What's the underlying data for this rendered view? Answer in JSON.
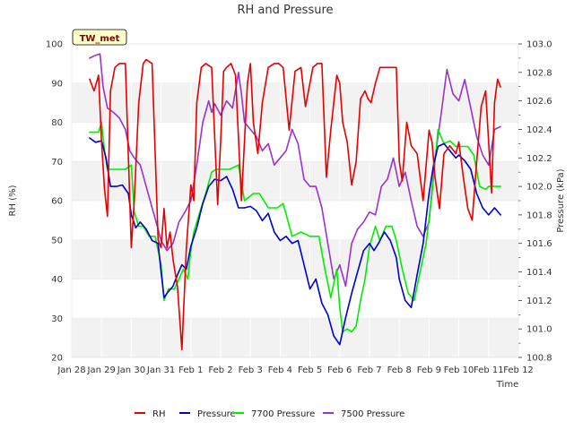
{
  "chart_data": {
    "type": "line",
    "title": "RH and Pressure",
    "station_label": "TW_met",
    "xlabel": "Time",
    "ylabel_left": "RH (%)",
    "ylabel_right": "Pressure (kPa)",
    "x_ticks": [
      "Jan 28",
      "Jan 29",
      "Jan 30",
      "Jan 31",
      "Feb 1",
      "Feb 2",
      "Feb 3",
      "Feb 4",
      "Feb 5",
      "Feb 6",
      "Feb 7",
      "Feb 8",
      "Feb 9",
      "Feb 10",
      "Feb 11",
      "Feb 12"
    ],
    "xlim_days": [
      0,
      15
    ],
    "ylim_left": [
      20,
      100
    ],
    "left_ticks": [
      20,
      30,
      40,
      50,
      60,
      70,
      80,
      90,
      100
    ],
    "ylim_right": [
      100.8,
      103.0
    ],
    "right_ticks": [
      "100.8",
      "101.0",
      "101.2",
      "101.4",
      "101.6",
      "101.8",
      "102.0",
      "102.2",
      "102.4",
      "102.6",
      "102.8",
      "103.0"
    ],
    "colors": {
      "RH": "#e60000",
      "Pressure": "#0000cc",
      "7700 Pressure": "#00ee00",
      "7500 Pressure": "#9a32cd",
      "band": "#f2f2f2",
      "grid": "#ffffff"
    },
    "legend": [
      "RH",
      "Pressure",
      "7700 Pressure",
      "7500 Pressure"
    ],
    "series": [
      {
        "name": "RH",
        "axis": "left",
        "x": [
          0.6,
          0.75,
          0.9,
          1.0,
          1.1,
          1.2,
          1.3,
          1.45,
          1.6,
          1.8,
          2.0,
          2.1,
          2.25,
          2.4,
          2.5,
          2.7,
          2.9,
          3.0,
          3.1,
          3.2,
          3.3,
          3.4,
          3.55,
          3.7,
          3.85,
          4.0,
          4.1,
          4.2,
          4.35,
          4.5,
          4.7,
          4.9,
          5.0,
          5.1,
          5.2,
          5.35,
          5.5,
          5.7,
          5.9,
          6.0,
          6.1,
          6.25,
          6.4,
          6.6,
          6.8,
          6.95,
          7.1,
          7.3,
          7.5,
          7.7,
          7.85,
          8.0,
          8.1,
          8.25,
          8.4,
          8.55,
          8.7,
          8.9,
          9.0,
          9.1,
          9.25,
          9.4,
          9.55,
          9.7,
          9.85,
          9.95,
          10.05,
          10.2,
          10.35,
          10.5,
          10.7,
          10.9,
          11.0,
          11.1,
          11.25,
          11.4,
          11.6,
          11.8,
          12.0,
          12.1,
          12.2,
          12.35,
          12.5,
          12.7,
          12.9,
          13.0,
          13.15,
          13.3,
          13.45,
          13.6,
          13.75,
          13.9,
          14.0,
          14.1,
          14.2,
          14.3,
          14.4
        ],
        "values": [
          91,
          88,
          92,
          75,
          63,
          56,
          88,
          94,
          95,
          95,
          48,
          60,
          85,
          95,
          96,
          95,
          50,
          48,
          58,
          48,
          52,
          45,
          38,
          22,
          48,
          64,
          60,
          85,
          94,
          95,
          94,
          59,
          75,
          93,
          94,
          95,
          92,
          60,
          90,
          95,
          80,
          72,
          85,
          94,
          95,
          95,
          94,
          78,
          93,
          94,
          84,
          90,
          94,
          95,
          95,
          66,
          78,
          92,
          90,
          80,
          75,
          64,
          70,
          86,
          88,
          86,
          85,
          90,
          94,
          94,
          94,
          94,
          70,
          65,
          80,
          74,
          72,
          60,
          78,
          75,
          66,
          58,
          72,
          74,
          72,
          75,
          66,
          58,
          55,
          70,
          84,
          88,
          75,
          62,
          85,
          91,
          89
        ]
      },
      {
        "name": "Pressure",
        "axis": "right",
        "x": [
          0.6,
          0.8,
          1.0,
          1.15,
          1.3,
          1.5,
          1.7,
          1.9,
          2.0,
          2.15,
          2.3,
          2.5,
          2.7,
          2.9,
          3.0,
          3.1,
          3.2,
          3.4,
          3.55,
          3.7,
          3.85,
          4.0,
          4.2,
          4.4,
          4.6,
          4.8,
          5.0,
          5.2,
          5.4,
          5.6,
          5.8,
          6.0,
          6.2,
          6.4,
          6.6,
          6.8,
          7.0,
          7.2,
          7.4,
          7.6,
          7.8,
          8.0,
          8.2,
          8.4,
          8.6,
          8.8,
          9.0,
          9.2,
          9.4,
          9.6,
          9.8,
          10.0,
          10.15,
          10.3,
          10.5,
          10.7,
          10.9,
          11.0,
          11.2,
          11.4,
          11.6,
          11.8,
          12.0,
          12.15,
          12.3,
          12.5,
          12.7,
          12.9,
          13.0,
          13.2,
          13.4,
          13.6,
          13.8,
          14.0,
          14.2,
          14.4
        ],
        "values": [
          102.34,
          102.31,
          102.32,
          102.2,
          102.0,
          102.0,
          102.01,
          101.95,
          101.8,
          101.71,
          101.75,
          101.7,
          101.62,
          101.6,
          101.4,
          101.22,
          101.25,
          101.3,
          101.38,
          101.45,
          101.42,
          101.58,
          101.71,
          101.88,
          102.0,
          102.05,
          102.04,
          102.07,
          101.98,
          101.85,
          101.85,
          101.86,
          101.83,
          101.76,
          101.81,
          101.68,
          101.62,
          101.65,
          101.6,
          101.62,
          101.45,
          101.28,
          101.35,
          101.18,
          101.1,
          100.95,
          100.89,
          101.08,
          101.25,
          101.4,
          101.55,
          101.6,
          101.55,
          101.6,
          101.68,
          101.62,
          101.5,
          101.35,
          101.2,
          101.15,
          101.38,
          101.6,
          101.95,
          102.15,
          102.28,
          102.3,
          102.25,
          102.2,
          102.22,
          102.18,
          102.12,
          101.95,
          101.85,
          101.8,
          101.85,
          101.8
        ]
      },
      {
        "name": "7700 Pressure",
        "axis": "right",
        "x": [
          0.6,
          0.9,
          1.0,
          1.1,
          1.2,
          1.5,
          1.8,
          2.0,
          2.1,
          2.25,
          2.4,
          2.6,
          2.8,
          3.0,
          3.1,
          3.25,
          3.45,
          3.6,
          3.75,
          3.9,
          4.0,
          4.1,
          4.3,
          4.5,
          4.7,
          4.85,
          5.0,
          5.3,
          5.6,
          5.8,
          6.1,
          6.3,
          6.6,
          6.9,
          7.1,
          7.4,
          7.7,
          8.0,
          8.3,
          8.5,
          8.7,
          8.9,
          9.0,
          9.1,
          9.25,
          9.4,
          9.55,
          9.7,
          9.85,
          10.0,
          10.2,
          10.35,
          10.55,
          10.75,
          10.9,
          11.1,
          11.3,
          11.5,
          11.7,
          11.9,
          12.1,
          12.3,
          12.5,
          12.7,
          12.9,
          13.1,
          13.3,
          13.5,
          13.7,
          13.9,
          14.0,
          14.2,
          14.4
        ],
        "values": [
          102.38,
          102.38,
          102.45,
          102.25,
          102.12,
          102.12,
          102.12,
          102.15,
          101.82,
          101.72,
          101.72,
          101.65,
          101.65,
          101.45,
          101.2,
          101.28,
          101.28,
          101.35,
          101.42,
          101.35,
          101.55,
          101.68,
          101.82,
          101.95,
          102.1,
          102.12,
          102.12,
          102.12,
          102.15,
          101.9,
          101.95,
          101.95,
          101.85,
          101.85,
          101.88,
          101.65,
          101.68,
          101.65,
          101.65,
          101.42,
          101.22,
          101.42,
          101.15,
          100.98,
          101.0,
          100.98,
          101.02,
          101.2,
          101.35,
          101.58,
          101.72,
          101.62,
          101.72,
          101.72,
          101.62,
          101.42,
          101.25,
          101.2,
          101.4,
          101.6,
          101.95,
          102.4,
          102.3,
          102.32,
          102.28,
          102.28,
          102.28,
          102.22,
          102.0,
          101.98,
          102.0,
          102.0,
          102.0
        ]
      },
      {
        "name": "7500 Pressure",
        "axis": "right",
        "x": [
          0.6,
          0.8,
          0.95,
          1.05,
          1.2,
          1.4,
          1.6,
          1.8,
          1.95,
          2.1,
          2.3,
          2.5,
          2.7,
          2.9,
          3.0,
          3.2,
          3.4,
          3.6,
          3.8,
          4.0,
          4.2,
          4.4,
          4.6,
          4.7,
          4.8,
          5.0,
          5.2,
          5.4,
          5.6,
          5.7,
          5.8,
          6.0,
          6.2,
          6.4,
          6.6,
          6.8,
          7.0,
          7.2,
          7.4,
          7.6,
          7.8,
          8.0,
          8.2,
          8.4,
          8.6,
          8.8,
          9.0,
          9.2,
          9.4,
          9.6,
          9.8,
          10.0,
          10.2,
          10.4,
          10.6,
          10.8,
          11.0,
          11.2,
          11.4,
          11.6,
          11.8,
          12.0,
          12.2,
          12.4,
          12.6,
          12.8,
          13.0,
          13.2,
          13.4,
          13.6,
          13.8,
          14.0,
          14.2,
          14.4
        ],
        "values": [
          102.9,
          102.92,
          102.93,
          102.7,
          102.55,
          102.52,
          102.48,
          102.4,
          102.25,
          102.2,
          102.15,
          102.0,
          101.85,
          101.7,
          101.62,
          101.55,
          101.6,
          101.75,
          101.82,
          101.9,
          102.15,
          102.45,
          102.6,
          102.52,
          102.58,
          102.5,
          102.6,
          102.55,
          102.8,
          102.65,
          102.45,
          102.4,
          102.35,
          102.25,
          102.3,
          102.15,
          102.2,
          102.25,
          102.4,
          102.3,
          102.05,
          102.0,
          102.0,
          101.85,
          101.6,
          101.35,
          101.45,
          101.3,
          101.6,
          101.7,
          101.75,
          101.82,
          101.8,
          102.0,
          102.05,
          102.2,
          102.0,
          102.1,
          101.9,
          101.72,
          101.65,
          101.75,
          102.2,
          102.5,
          102.82,
          102.65,
          102.6,
          102.75,
          102.55,
          102.35,
          102.22,
          102.15,
          102.4,
          102.42
        ]
      }
    ]
  }
}
